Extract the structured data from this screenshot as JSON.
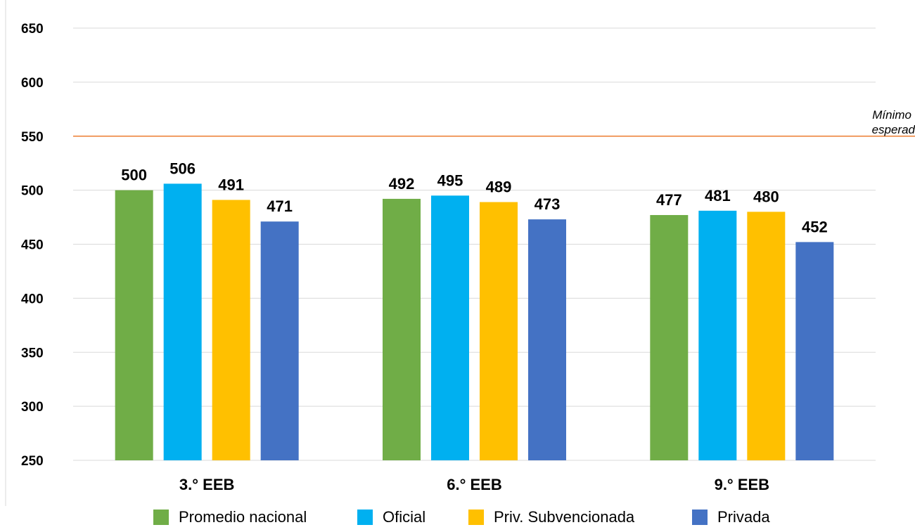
{
  "chart_data": {
    "type": "bar",
    "title": "",
    "categories": [
      "3.° EEB",
      "6.° EEB",
      "9.° EEB"
    ],
    "series": [
      {
        "name": "Promedio nacional",
        "values": [
          500,
          492,
          477
        ],
        "color": "#70AD47"
      },
      {
        "name": "Oficial",
        "values": [
          506,
          495,
          481
        ],
        "color": "#00B0F0"
      },
      {
        "name": "Priv. Subvencionada",
        "values": [
          491,
          489,
          480
        ],
        "color": "#FFC000"
      },
      {
        "name": "Privada",
        "values": [
          471,
          473,
          452
        ],
        "color": "#4472C4"
      }
    ],
    "ylim": [
      250,
      650
    ],
    "yticks": [
      "650",
      "600",
      "550",
      "500",
      "450",
      "400",
      "350",
      "300",
      "250"
    ],
    "reference_line": {
      "value": 550,
      "label_line1": "Mínimo",
      "label_line2": "esperad",
      "color": "#ED7D31"
    },
    "grid": true,
    "legend_position": "bottom"
  }
}
